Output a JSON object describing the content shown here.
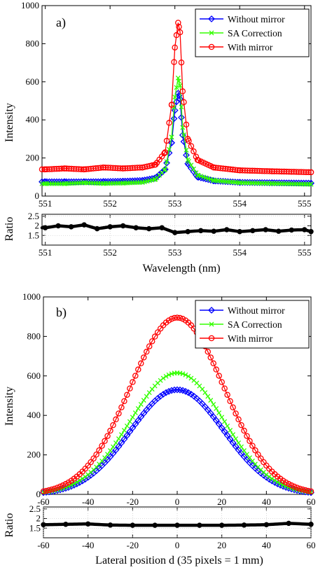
{
  "colors": {
    "without_mirror": "#0000ff",
    "sa_correction": "#33ff00",
    "with_mirror": "#ff0000",
    "ratio": "#000000",
    "grid": "#bdbdbd"
  },
  "chart_data": [
    {
      "panel": "a)",
      "type": "line",
      "xlim": [
        550.95,
        555.1
      ],
      "ylim": [
        0,
        1000
      ],
      "yticks": [
        "0",
        "200",
        "400",
        "600",
        "800",
        "1000"
      ],
      "xticks": [
        "551",
        "552",
        "553",
        "554",
        "555"
      ],
      "xticks_top": [
        "551",
        "552",
        "553",
        "554",
        "555"
      ],
      "ylabel": "Intensity",
      "grid": false,
      "legend_position": "top-right",
      "legend": [
        "Without mirror",
        "SA Correction",
        "With mirror"
      ],
      "series": [
        {
          "name": "Without mirror",
          "color": "#0000ff",
          "marker": "diamond",
          "x": [
            551.0,
            551.3,
            551.6,
            551.9,
            552.2,
            552.5,
            552.7,
            552.85,
            552.95,
            553.0,
            553.05,
            553.08,
            553.12,
            553.2,
            553.35,
            553.6,
            554.0,
            554.5,
            555.1
          ],
          "y": [
            75,
            75,
            75,
            76,
            78,
            82,
            95,
            140,
            280,
            450,
            540,
            510,
            320,
            170,
            100,
            80,
            72,
            70,
            68
          ]
        },
        {
          "name": "SA Correction",
          "color": "#33ff00",
          "marker": "x",
          "x": [
            551.0,
            551.3,
            551.6,
            551.9,
            552.2,
            552.5,
            552.7,
            552.85,
            552.95,
            553.0,
            553.05,
            553.08,
            553.12,
            553.2,
            553.35,
            553.6,
            554.0,
            554.5,
            555.1
          ],
          "y": [
            65,
            65,
            70,
            66,
            68,
            72,
            88,
            140,
            310,
            520,
            620,
            580,
            360,
            190,
            110,
            82,
            70,
            66,
            62
          ]
        },
        {
          "name": "With mirror",
          "color": "#ff0000",
          "marker": "circle",
          "x": [
            551.0,
            551.3,
            551.6,
            551.9,
            552.2,
            552.5,
            552.7,
            552.85,
            552.95,
            553.0,
            553.05,
            553.08,
            553.12,
            553.2,
            553.35,
            553.6,
            554.0,
            554.5,
            555.1
          ],
          "y": [
            140,
            145,
            140,
            150,
            145,
            150,
            165,
            230,
            480,
            780,
            910,
            860,
            550,
            300,
            190,
            150,
            135,
            130,
            125
          ]
        }
      ],
      "ratio": {
        "ylabel": "Ratio",
        "ylim": [
          1,
          2.6
        ],
        "yticks": [
          "1.5",
          "2",
          "2.5"
        ],
        "grid": true,
        "x": [
          551.0,
          551.2,
          551.4,
          551.6,
          551.8,
          552.0,
          552.2,
          552.4,
          552.6,
          552.8,
          553.0,
          553.2,
          553.4,
          553.6,
          553.8,
          554.0,
          554.2,
          554.4,
          554.6,
          554.8,
          555.0,
          555.1
        ],
        "y": [
          1.9,
          2.0,
          1.95,
          2.05,
          1.85,
          1.95,
          2.0,
          1.9,
          1.85,
          1.9,
          1.65,
          1.7,
          1.75,
          1.72,
          1.8,
          1.7,
          1.75,
          1.8,
          1.72,
          1.78,
          1.8,
          1.7
        ]
      },
      "xlabel": "Wavelength (nm)"
    },
    {
      "panel": "b)",
      "type": "line",
      "xlim": [
        -60,
        60
      ],
      "ylim": [
        0,
        1000
      ],
      "yticks": [
        "0",
        "200",
        "400",
        "600",
        "800",
        "1000"
      ],
      "xticks": [
        "-60",
        "-40",
        "-20",
        "0",
        "20",
        "40",
        "60"
      ],
      "xticks_top": [
        "-60",
        "-40",
        "-20",
        "0",
        "20",
        "40",
        "60"
      ],
      "ylabel": "Intensity",
      "grid": false,
      "legend_position": "top-right",
      "legend": [
        "Without mirror",
        "SA Correction",
        "With mirror"
      ],
      "series": [
        {
          "name": "Without mirror",
          "color": "#0000ff",
          "marker": "diamond",
          "peak": 530,
          "sigma": 21
        },
        {
          "name": "SA Correction",
          "color": "#33ff00",
          "marker": "x",
          "peak": 615,
          "sigma": 21
        },
        {
          "name": "With mirror",
          "color": "#ff0000",
          "marker": "circle",
          "peak": 895,
          "sigma": 21
        }
      ],
      "ratio": {
        "ylabel": "Ratio",
        "ylim": [
          1,
          2.6
        ],
        "yticks": [
          "1.5",
          "2",
          "2.5"
        ],
        "grid": true,
        "x": [
          -60,
          -50,
          -40,
          -30,
          -20,
          -10,
          0,
          10,
          20,
          30,
          40,
          50,
          60
        ],
        "y": [
          1.68,
          1.7,
          1.72,
          1.66,
          1.65,
          1.65,
          1.65,
          1.65,
          1.65,
          1.66,
          1.68,
          1.75,
          1.7
        ]
      },
      "xlabel": "Lateral position d (35 pixels = 1 mm)"
    }
  ]
}
